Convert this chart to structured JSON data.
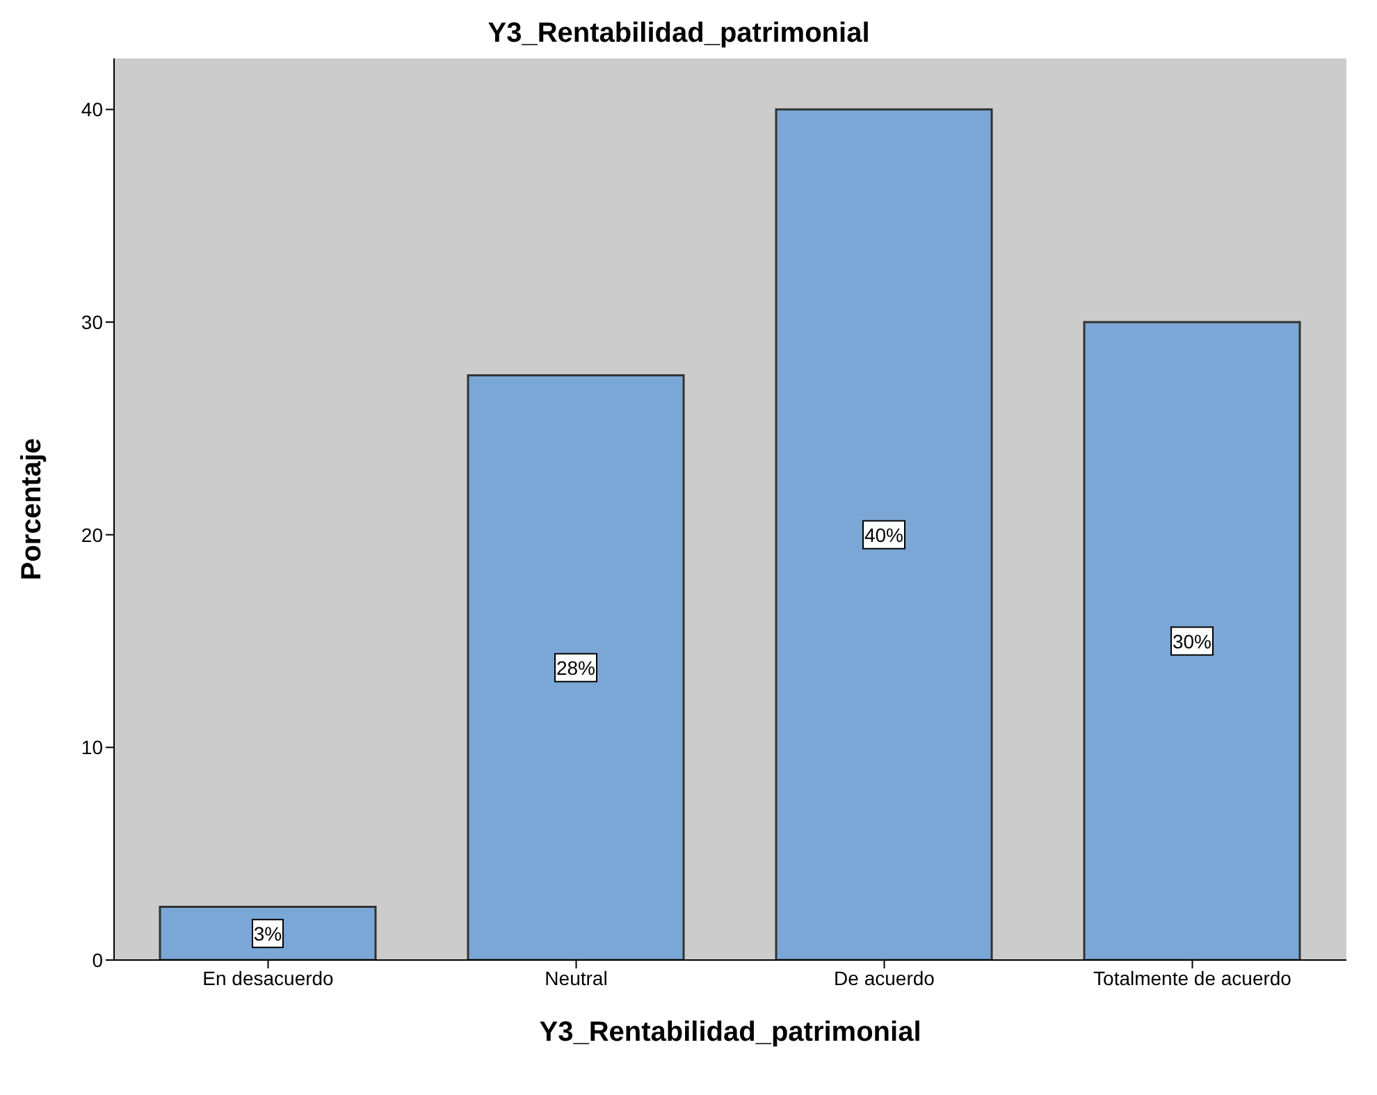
{
  "chart_data": {
    "type": "bar",
    "title": "Y3_Rentabilidad_patrimonial",
    "xlabel": "Y3_Rentabilidad_patrimonial",
    "ylabel": "Porcentaje",
    "categories": [
      "En desacuerdo",
      "Neutral",
      "De acuerdo",
      "Totalmente de acuerdo"
    ],
    "values": [
      2.5,
      27.5,
      40,
      30
    ],
    "value_labels": [
      "3%",
      "28%",
      "40%",
      "30%"
    ],
    "color": "#7aa7d5",
    "ylim": [
      0,
      42.4
    ],
    "yticks": [
      0,
      10,
      20,
      30,
      40
    ],
    "grid": false
  }
}
